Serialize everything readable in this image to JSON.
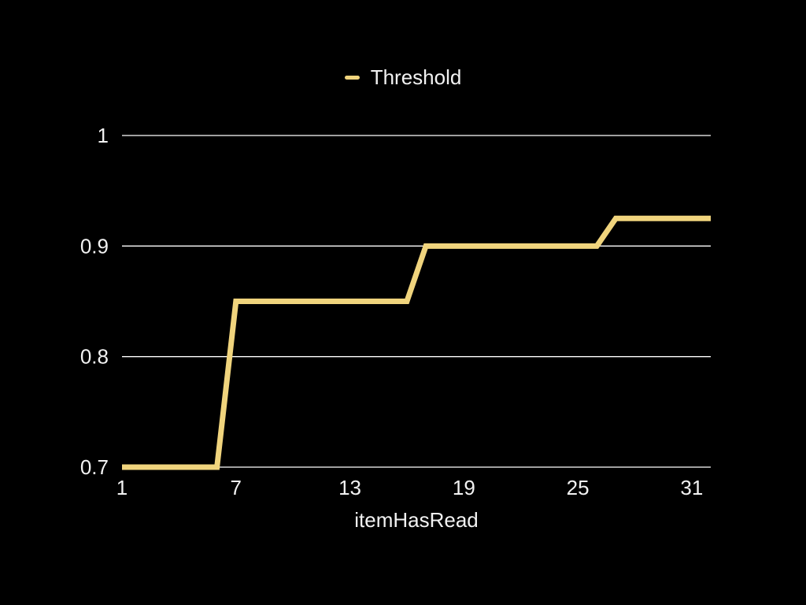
{
  "legend": {
    "label": "Threshold",
    "swatch_color": "#F0D47D"
  },
  "chart_data": {
    "type": "line",
    "title": "",
    "xlabel": "itemHasRead",
    "ylabel": "",
    "legend_position": "top-center",
    "grid": true,
    "background_color": "#000000",
    "text_color": "#F2F2F2",
    "gridline_color": "#FFFFFF",
    "xlim": [
      1,
      32
    ],
    "ylim": [
      0.7,
      1.0
    ],
    "x_ticks": [
      1,
      7,
      13,
      19,
      25,
      31
    ],
    "y_ticks": [
      {
        "label": "1",
        "value": 1.0
      },
      {
        "label": "0.9",
        "value": 0.9
      },
      {
        "label": "0.8",
        "value": 0.8
      },
      {
        "label": "0.7",
        "value": 0.7
      }
    ],
    "x": [
      1,
      2,
      3,
      4,
      5,
      6,
      7,
      8,
      9,
      10,
      11,
      12,
      13,
      14,
      15,
      16,
      17,
      18,
      19,
      20,
      21,
      22,
      23,
      24,
      25,
      26,
      27,
      28,
      29,
      30,
      31,
      32
    ],
    "series": [
      {
        "name": "Threshold",
        "color": "#F0D47D",
        "values": [
          0.7,
          0.7,
          0.7,
          0.7,
          0.7,
          0.7,
          0.85,
          0.85,
          0.85,
          0.85,
          0.85,
          0.85,
          0.85,
          0.85,
          0.85,
          0.85,
          0.9,
          0.9,
          0.9,
          0.9,
          0.9,
          0.9,
          0.9,
          0.9,
          0.9,
          0.9,
          0.925,
          0.925,
          0.925,
          0.925,
          0.925,
          0.925
        ]
      }
    ]
  }
}
